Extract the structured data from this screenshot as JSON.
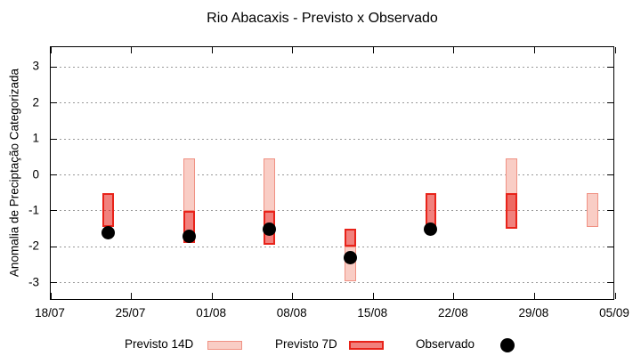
{
  "title": "Rio Abacaxis - Previsto x Observado",
  "axes": {
    "y_label": "Anomalia de Preciptação Categorizada",
    "y_tick_values": [
      3,
      2,
      1,
      0,
      -1,
      -2,
      -3
    ],
    "y_tick_labels": [
      "3",
      "2",
      "1",
      "0",
      "-1",
      "-2",
      "-3"
    ],
    "x_tick_days": [
      0,
      7,
      14,
      21,
      28,
      35,
      42,
      49
    ],
    "x_tick_labels": [
      "18/07",
      "25/07",
      "01/08",
      "08/08",
      "15/08",
      "22/08",
      "29/08",
      "05/09"
    ]
  },
  "legend": {
    "items": [
      {
        "label": "Previsto 14D",
        "swatch": "p14-box"
      },
      {
        "label": "Previsto 7D",
        "swatch": "p7-box"
      },
      {
        "label": "Observado",
        "swatch": "black-dot"
      }
    ]
  },
  "colors": {
    "axis": "#000000",
    "grid": "#999999",
    "p14_fill": "#f9cdc5",
    "p14_border": "#f09183",
    "p7_fill": "rgba(230,25,18,0.55)",
    "p7_border": "#e8231a",
    "obs": "#000000"
  },
  "chart_data": {
    "type": "bar",
    "subtype": "range-boxes-with-observed-points",
    "title": "Rio Abacaxis - Previsto x Observado",
    "xlabel": "",
    "ylabel": "Anomalia de Preciptação Categorizada",
    "ylim": [
      -3.5,
      3.55
    ],
    "x_range_days": 49,
    "x_axis_start_label": "18/07",
    "grid": "horizontal-dotted",
    "legend_position": "bottom",
    "categories": [
      "23/07",
      "30/07",
      "06/08",
      "13/08",
      "20/08",
      "27/08",
      "03/09"
    ],
    "day_offsets": [
      5,
      12,
      19,
      26,
      33,
      40,
      47
    ],
    "bar_width_days": 1,
    "series": [
      {
        "name": "Previsto 14D",
        "style": "light-pink-box",
        "ranges": [
          null,
          [
            -1.0,
            0.45
          ],
          [
            -1.0,
            0.45
          ],
          [
            -2.95,
            -2.0
          ],
          null,
          [
            -1.0,
            0.45
          ],
          [
            -1.45,
            -0.5
          ]
        ]
      },
      {
        "name": "Previsto 7D",
        "style": "red-box-semitransparent",
        "ranges": [
          [
            -1.45,
            -0.5
          ],
          [
            -1.9,
            -1.0
          ],
          [
            -1.95,
            -1.0
          ],
          [
            -2.0,
            -1.5
          ],
          [
            -1.45,
            -0.5
          ],
          [
            -1.5,
            -0.5
          ],
          null
        ]
      },
      {
        "name": "Observado",
        "style": "black-point",
        "values": [
          -1.6,
          -1.7,
          -1.5,
          -2.3,
          -1.5,
          null,
          null
        ]
      }
    ]
  }
}
